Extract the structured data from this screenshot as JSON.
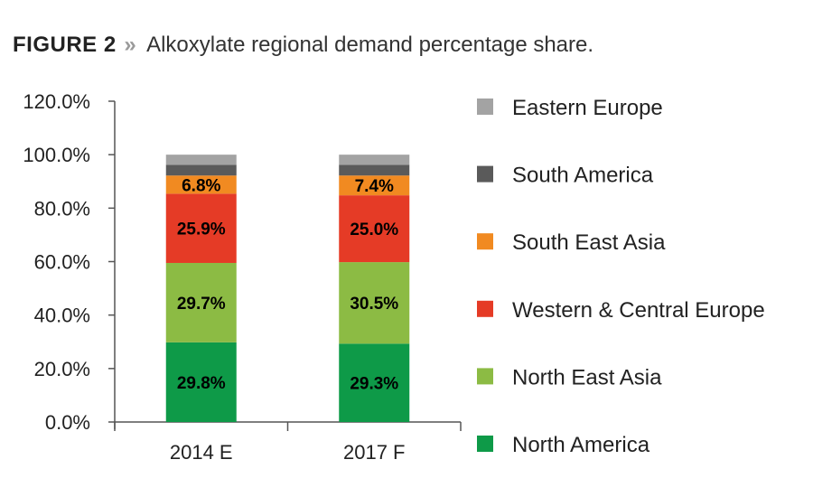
{
  "figure": {
    "label": "FIGURE 2",
    "separator": "»",
    "caption": "Alkoxylate regional demand percentage share."
  },
  "chart_data": {
    "type": "bar",
    "stacked": true,
    "categories": [
      "2014 E",
      "2017 F"
    ],
    "ylim": [
      0,
      120
    ],
    "yticks": [
      0,
      20,
      40,
      60,
      80,
      100,
      120
    ],
    "ytick_labels": [
      "0.0%",
      "20.0%",
      "40.0%",
      "60.0%",
      "80.0%",
      "100.0%",
      "120.0%"
    ],
    "grid": false,
    "legend_position": "right",
    "series": [
      {
        "name": "North America",
        "color": "#0e9a48",
        "values": [
          29.8,
          29.3
        ],
        "labels": [
          "29.8%",
          "29.3%"
        ]
      },
      {
        "name": "North East Asia",
        "color": "#8cbb44",
        "values": [
          29.7,
          30.5
        ],
        "labels": [
          "29.7%",
          "30.5%"
        ]
      },
      {
        "name": "Western & Central Europe",
        "color": "#e53b26",
        "values": [
          25.9,
          25.0
        ],
        "labels": [
          "25.9%",
          "25.0%"
        ]
      },
      {
        "name": "South East Asia",
        "color": "#f18a21",
        "values": [
          6.8,
          7.4
        ],
        "labels": [
          "6.8%",
          "7.4%"
        ]
      },
      {
        "name": "South America",
        "color": "#5a5a5a",
        "values": [
          4.0,
          4.0
        ],
        "labels": [
          "",
          ""
        ]
      },
      {
        "name": "Eastern Europe",
        "color": "#a3a3a3",
        "values": [
          3.8,
          3.8
        ],
        "labels": [
          "",
          ""
        ]
      }
    ]
  }
}
